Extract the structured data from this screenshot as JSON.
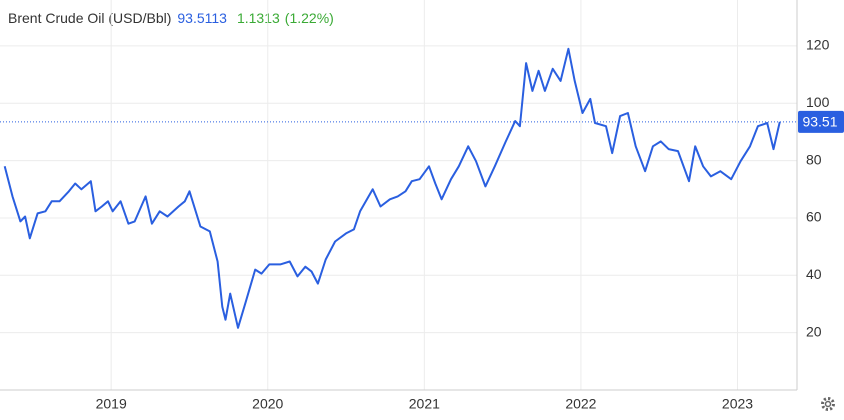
{
  "chart_data": {
    "type": "line",
    "series": [
      {
        "name": "Brent Crude Oil (USD/Bbl)",
        "color": "#2a5fe0",
        "values": [
          78,
          67.5,
          58.8,
          60.5,
          52.9,
          61.6,
          62.3,
          65.8,
          65.8,
          69.3,
          72,
          70,
          72.8,
          62.3,
          64,
          65.8,
          62.3,
          65.8,
          58,
          58.8,
          67.5,
          58,
          62.3,
          60.5,
          64,
          65.8,
          69.3,
          57,
          55.3,
          44.8,
          29,
          24.5,
          33.6,
          21.7,
          30.8,
          42,
          40.6,
          43.8,
          43.8,
          44.8,
          39.6,
          43,
          41.3,
          37.1,
          45.5,
          51.8,
          54.6,
          56,
          62.3,
          70,
          64,
          66.5,
          67.5,
          69.3,
          72.8,
          73.5,
          78,
          72,
          66.5,
          73.5,
          78,
          85,
          79.8,
          71,
          78,
          86.7,
          93.8,
          92,
          114,
          104.3,
          111.3,
          104.3,
          112,
          107.8,
          119,
          107.8,
          96.6,
          101.5,
          93.1,
          92,
          82.6,
          95.5,
          96.6,
          85,
          76.3,
          85,
          86.7,
          84,
          83.3,
          72.8,
          85,
          78,
          74.5,
          76.3,
          73.5,
          79.8,
          85,
          92,
          93.1,
          84,
          93.5113
        ]
      }
    ],
    "x": [
      2018.32,
      2018.37,
      2018.42,
      2018.45,
      2018.48,
      2018.53,
      2018.58,
      2018.62,
      2018.67,
      2018.73,
      2018.77,
      2018.81,
      2018.87,
      2018.9,
      2018.94,
      2018.98,
      2019.01,
      2019.06,
      2019.11,
      2019.15,
      2019.22,
      2019.26,
      2019.31,
      2019.36,
      2019.43,
      2019.47,
      2019.5,
      2019.57,
      2019.63,
      2019.68,
      2019.71,
      2019.73,
      2019.76,
      2019.81,
      2019.86,
      2019.92,
      2019.96,
      2020.01,
      2020.08,
      2020.14,
      2020.19,
      2020.24,
      2020.28,
      2020.32,
      2020.37,
      2020.43,
      2020.5,
      2020.55,
      2020.59,
      2020.67,
      2020.72,
      2020.78,
      2020.83,
      2020.88,
      2020.92,
      2020.97,
      2021.03,
      2021.07,
      2021.11,
      2021.17,
      2021.22,
      2021.28,
      2021.33,
      2021.39,
      2021.45,
      2021.52,
      2021.58,
      2021.61,
      2021.65,
      2021.69,
      2021.73,
      2021.77,
      2021.82,
      2021.87,
      2021.92,
      2021.96,
      2022.01,
      2022.06,
      2022.09,
      2022.16,
      2022.2,
      2022.25,
      2022.3,
      2022.35,
      2022.41,
      2022.46,
      2022.51,
      2022.56,
      2022.62,
      2022.69,
      2022.73,
      2022.78,
      2022.83,
      2022.89,
      2022.96,
      2023.02,
      2023.08,
      2023.13,
      2023.19,
      2023.23,
      2023.27
    ],
    "xlim": [
      2018.29,
      2023.38
    ],
    "xticks": [
      2019,
      2020,
      2021,
      2022,
      2023
    ],
    "ylim": [
      0,
      136
    ],
    "yticks": [
      20,
      40,
      60,
      80,
      100,
      120
    ],
    "grid": true,
    "last": {
      "value": 93.5113,
      "label": "93.51"
    },
    "change": {
      "value": 1.1313,
      "color": "#3aaa35"
    },
    "change_pct": {
      "value": 1.22,
      "label": "(1.22%)"
    }
  }
}
